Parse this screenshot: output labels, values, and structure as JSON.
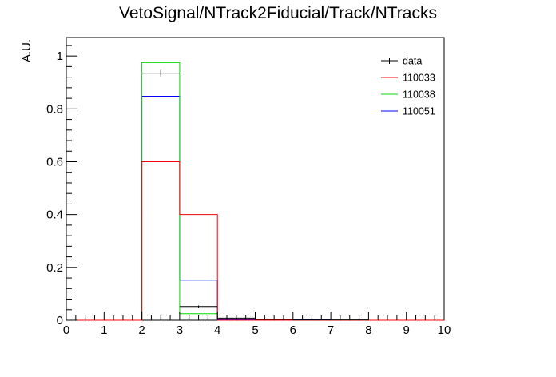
{
  "chart_data": {
    "type": "histogram",
    "title": "VetoSignal/NTrack2Fiducial/Track/NTracks",
    "xlabel": "",
    "ylabel": "A.U.",
    "xlim": [
      0,
      10
    ],
    "ylim": [
      0,
      1.07
    ],
    "bin_edges": [
      0,
      1,
      2,
      3,
      4,
      5,
      6,
      7,
      8,
      9,
      10
    ],
    "x_ticks": [
      0,
      1,
      2,
      3,
      4,
      5,
      6,
      7,
      8,
      9,
      10
    ],
    "y_ticks": [
      0,
      0.2,
      0.4,
      0.6,
      0.8,
      1
    ],
    "legend_position": "top-right",
    "series": [
      {
        "name": "data",
        "color": "#000000",
        "style": "points-with-errors",
        "values": [
          0,
          0,
          0.935,
          0.052,
          0.008,
          0.003,
          0.001,
          0.001,
          0,
          0
        ],
        "errors": [
          0,
          0,
          0.012,
          0.004,
          0.002,
          0.001,
          0,
          0,
          0,
          0
        ]
      },
      {
        "name": "110033",
        "color": "#ff0000",
        "style": "step",
        "values": [
          0,
          0,
          0.6,
          0.4,
          0,
          0,
          0,
          0,
          0,
          0
        ]
      },
      {
        "name": "110038",
        "color": "#00dd00",
        "style": "step",
        "values": [
          0,
          0,
          0.975,
          0.025,
          0,
          0,
          0,
          0,
          0,
          0
        ]
      },
      {
        "name": "110051",
        "color": "#0000ff",
        "style": "step",
        "values": [
          0,
          0,
          0.848,
          0.152,
          0.002,
          0.001,
          0.001,
          0,
          0,
          0
        ]
      }
    ]
  }
}
